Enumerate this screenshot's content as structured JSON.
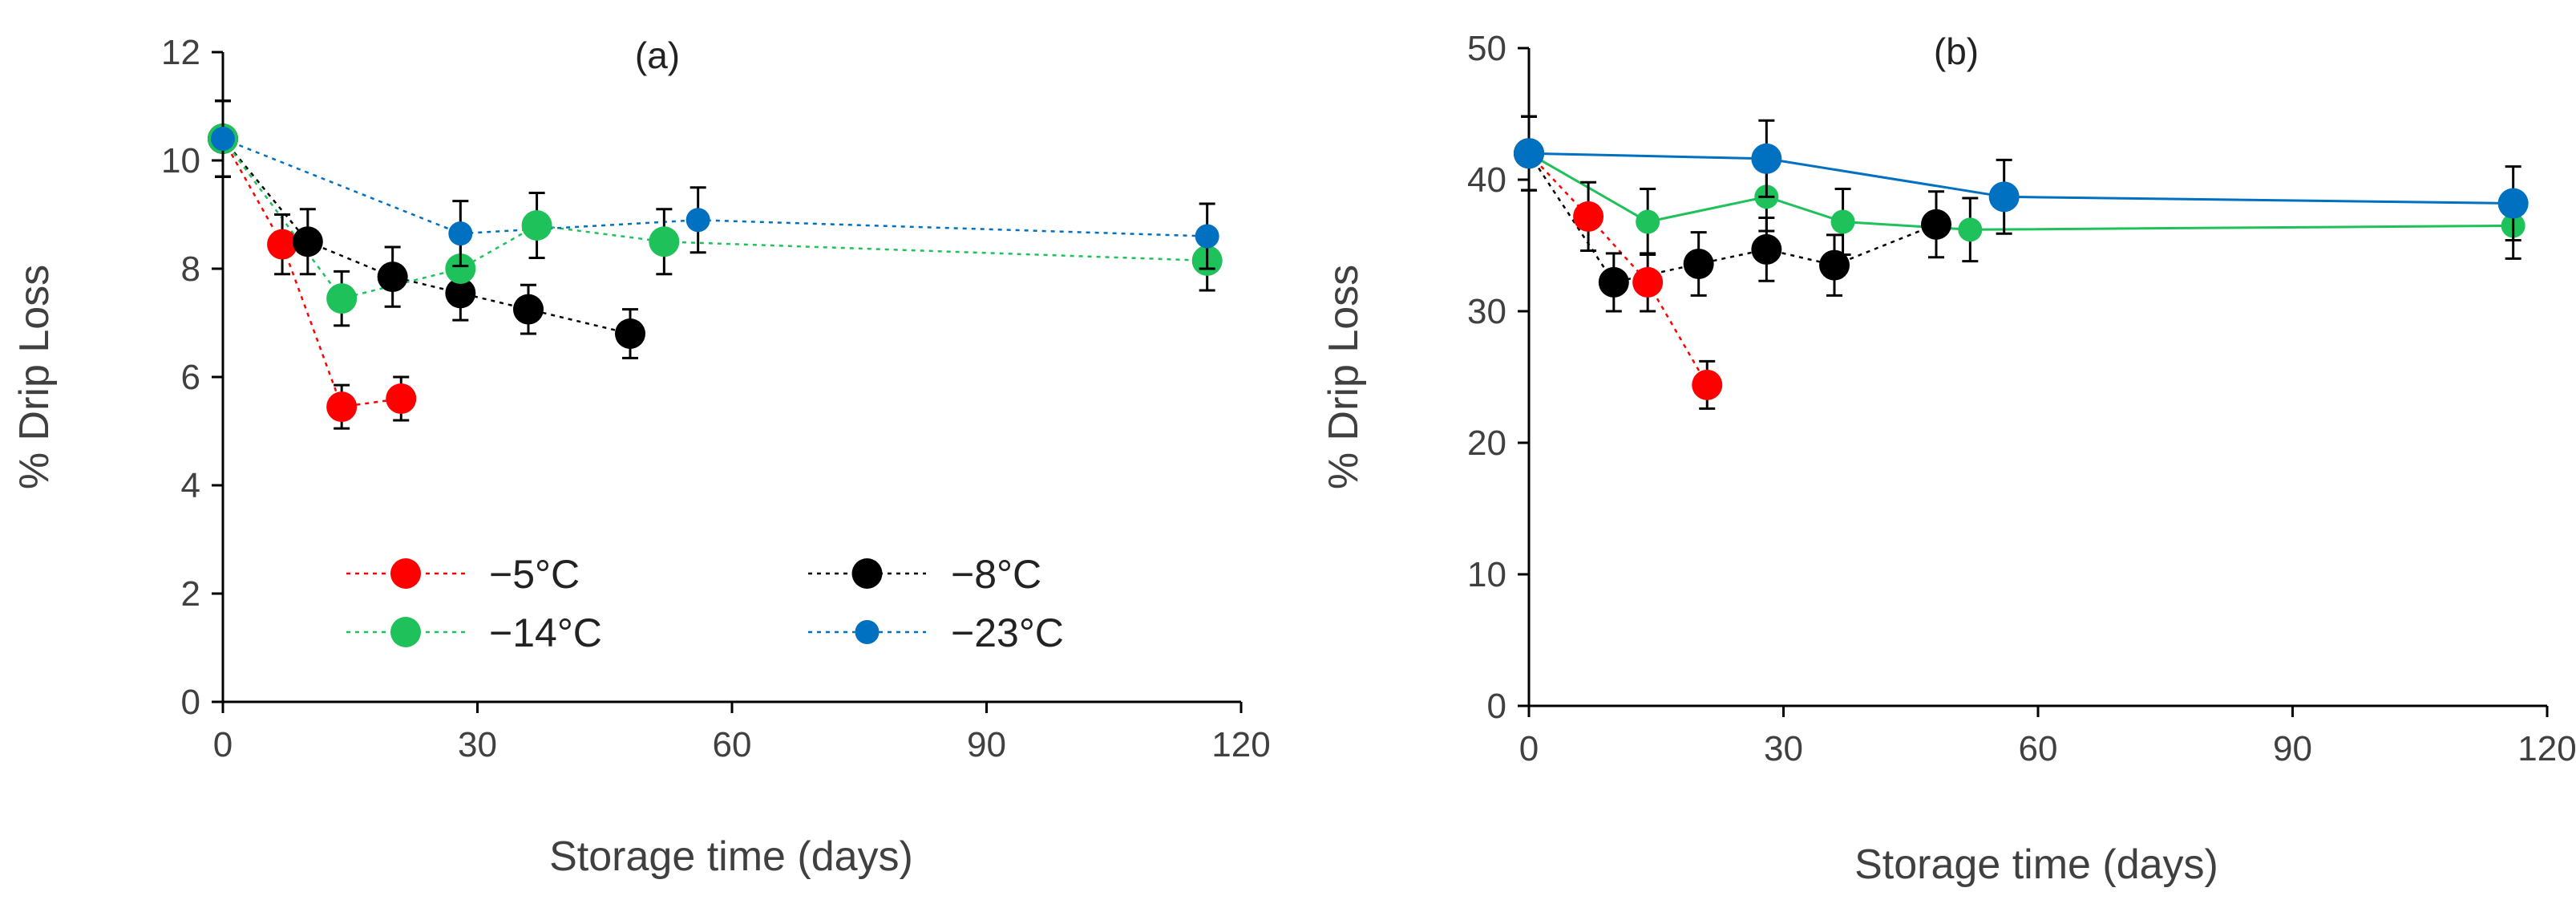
{
  "chart_data": [
    {
      "type": "scatter",
      "title": "(a)",
      "xlabel": "Storage time (days)",
      "ylabel": "% Drip Loss",
      "xlim": [
        0,
        120
      ],
      "ylim": [
        0,
        12
      ],
      "xticks": [
        0,
        30,
        60,
        90,
        120
      ],
      "yticks": [
        0,
        2,
        4,
        6,
        8,
        10,
        12
      ],
      "grid": false,
      "legend": {
        "placement": "lower-center",
        "columns": 2
      },
      "series": [
        {
          "name": "−5°C",
          "color": "#ff0000",
          "line": "dotted",
          "marker": "large-circle",
          "x": [
            0,
            7,
            14,
            21
          ],
          "y": [
            10.4,
            8.45,
            5.45,
            5.6
          ],
          "err": [
            0.7,
            0.55,
            0.4,
            0.4
          ]
        },
        {
          "name": "−8°C",
          "color": "#000000",
          "line": "dotted",
          "marker": "large-circle",
          "x": [
            0,
            10,
            20,
            28,
            36,
            48
          ],
          "y": [
            10.4,
            8.5,
            7.85,
            7.55,
            7.25,
            6.8
          ],
          "err": [
            0.7,
            0.6,
            0.55,
            0.5,
            0.45,
            0.45
          ]
        },
        {
          "name": "−14°C",
          "color": "#1fc15a",
          "line": "dotted",
          "marker": "large-circle",
          "x": [
            0,
            14,
            28,
            37,
            52,
            116
          ],
          "y": [
            10.4,
            7.45,
            8.0,
            8.8,
            8.5,
            8.15
          ],
          "err": [
            0.7,
            0.5,
            0.6,
            0.6,
            0.6,
            0.55
          ]
        },
        {
          "name": "−23°C",
          "color": "#0070c0",
          "line": "dotted",
          "marker": "small-circle",
          "x": [
            0,
            28,
            56,
            116
          ],
          "y": [
            10.4,
            8.65,
            8.9,
            8.6
          ],
          "err": [
            0.7,
            0.6,
            0.6,
            0.6
          ]
        }
      ]
    },
    {
      "type": "scatter",
      "title": "(b)",
      "xlabel": "Storage time (days)",
      "ylabel": "% Drip Loss",
      "xlim": [
        0,
        120
      ],
      "ylim": [
        0,
        50
      ],
      "xticks": [
        0,
        30,
        60,
        90,
        120
      ],
      "yticks": [
        0,
        10,
        20,
        30,
        40,
        50
      ],
      "grid": false,
      "series": [
        {
          "name": "−5°C",
          "color": "#ff0000",
          "line": "dotted",
          "marker": "large-circle",
          "x": [
            0,
            7,
            14,
            21
          ],
          "y": [
            42,
            37.2,
            32.2,
            24.4
          ],
          "err": [
            2.8,
            2.6,
            2.2,
            1.8
          ]
        },
        {
          "name": "−8°C",
          "color": "#000000",
          "line": "dotted",
          "marker": "large-circle",
          "x": [
            0,
            10,
            20,
            28,
            36,
            48
          ],
          "y": [
            42,
            32.2,
            33.6,
            34.7,
            33.5,
            36.6
          ],
          "err": [
            2.8,
            2.2,
            2.4,
            2.4,
            2.3,
            2.5
          ]
        },
        {
          "name": "−14°C",
          "color": "#1fc15a",
          "line": "solid",
          "marker": "small-circle",
          "x": [
            0,
            14,
            28,
            37,
            52,
            116
          ],
          "y": [
            42,
            36.8,
            38.7,
            36.8,
            36.2,
            36.5
          ],
          "err": [
            2.8,
            2.5,
            2.6,
            2.5,
            2.4,
            2.5
          ]
        },
        {
          "name": "−23°C",
          "color": "#0070c0",
          "line": "solid",
          "marker": "large-circle",
          "x": [
            0,
            28,
            56,
            116
          ],
          "y": [
            42,
            41.6,
            38.7,
            38.2
          ],
          "err": [
            2.8,
            2.9,
            2.8,
            2.8
          ]
        }
      ]
    }
  ]
}
